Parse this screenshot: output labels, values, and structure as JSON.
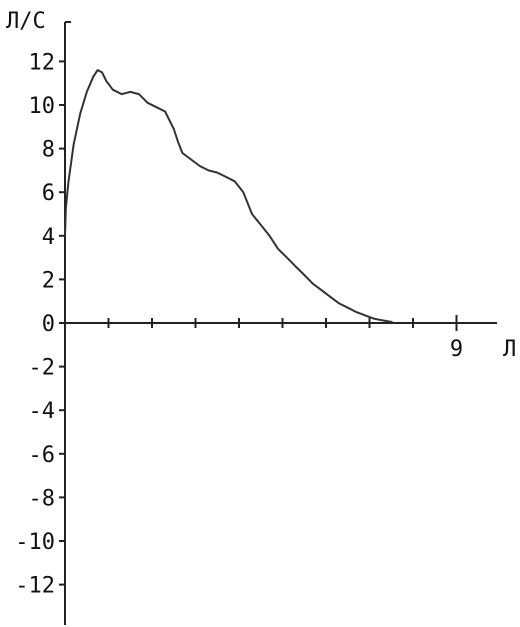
{
  "chart_data": {
    "type": "line",
    "ylabel": "Л/С",
    "xlabel": "Л",
    "xlim": [
      0,
      10
    ],
    "ylim": [
      -14,
      14
    ],
    "x_tick_labels": [
      {
        "value": 9,
        "label": "9"
      }
    ],
    "y_tick_labels": [
      {
        "value": 12,
        "label": "12"
      },
      {
        "value": 10,
        "label": "10"
      },
      {
        "value": 8,
        "label": "8"
      },
      {
        "value": 6,
        "label": "6"
      },
      {
        "value": 4,
        "label": "4"
      },
      {
        "value": 2,
        "label": "2"
      },
      {
        "value": 0,
        "label": "0"
      },
      {
        "value": -2,
        "label": "-2"
      },
      {
        "value": -4,
        "label": "-4"
      },
      {
        "value": -6,
        "label": "-6"
      },
      {
        "value": -8,
        "label": "-8"
      },
      {
        "value": -10,
        "label": "-10"
      },
      {
        "value": -12,
        "label": "-12"
      }
    ],
    "grid": false,
    "series": [
      {
        "color": "#333333",
        "points": [
          [
            0.0,
            4.0
          ],
          [
            0.02,
            5.3
          ],
          [
            0.08,
            6.5
          ],
          [
            0.2,
            8.2
          ],
          [
            0.35,
            9.6
          ],
          [
            0.5,
            10.6
          ],
          [
            0.65,
            11.3
          ],
          [
            0.75,
            11.6
          ],
          [
            0.85,
            11.5
          ],
          [
            0.95,
            11.1
          ],
          [
            1.1,
            10.7
          ],
          [
            1.3,
            10.5
          ],
          [
            1.5,
            10.6
          ],
          [
            1.7,
            10.5
          ],
          [
            1.9,
            10.1
          ],
          [
            2.1,
            9.9
          ],
          [
            2.3,
            9.7
          ],
          [
            2.5,
            8.9
          ],
          [
            2.6,
            8.3
          ],
          [
            2.7,
            7.8
          ],
          [
            2.9,
            7.5
          ],
          [
            3.1,
            7.2
          ],
          [
            3.3,
            7.0
          ],
          [
            3.5,
            6.9
          ],
          [
            3.7,
            6.7
          ],
          [
            3.9,
            6.5
          ],
          [
            4.1,
            6.0
          ],
          [
            4.3,
            5.0
          ],
          [
            4.5,
            4.5
          ],
          [
            4.7,
            4.0
          ],
          [
            4.9,
            3.4
          ],
          [
            5.1,
            3.0
          ],
          [
            5.3,
            2.6
          ],
          [
            5.5,
            2.2
          ],
          [
            5.7,
            1.8
          ],
          [
            5.9,
            1.5
          ],
          [
            6.1,
            1.2
          ],
          [
            6.3,
            0.9
          ],
          [
            6.5,
            0.7
          ],
          [
            6.7,
            0.5
          ],
          [
            6.9,
            0.35
          ],
          [
            7.1,
            0.2
          ],
          [
            7.3,
            0.12
          ],
          [
            7.5,
            0.05
          ],
          [
            7.55,
            0.0
          ]
        ]
      }
    ]
  }
}
